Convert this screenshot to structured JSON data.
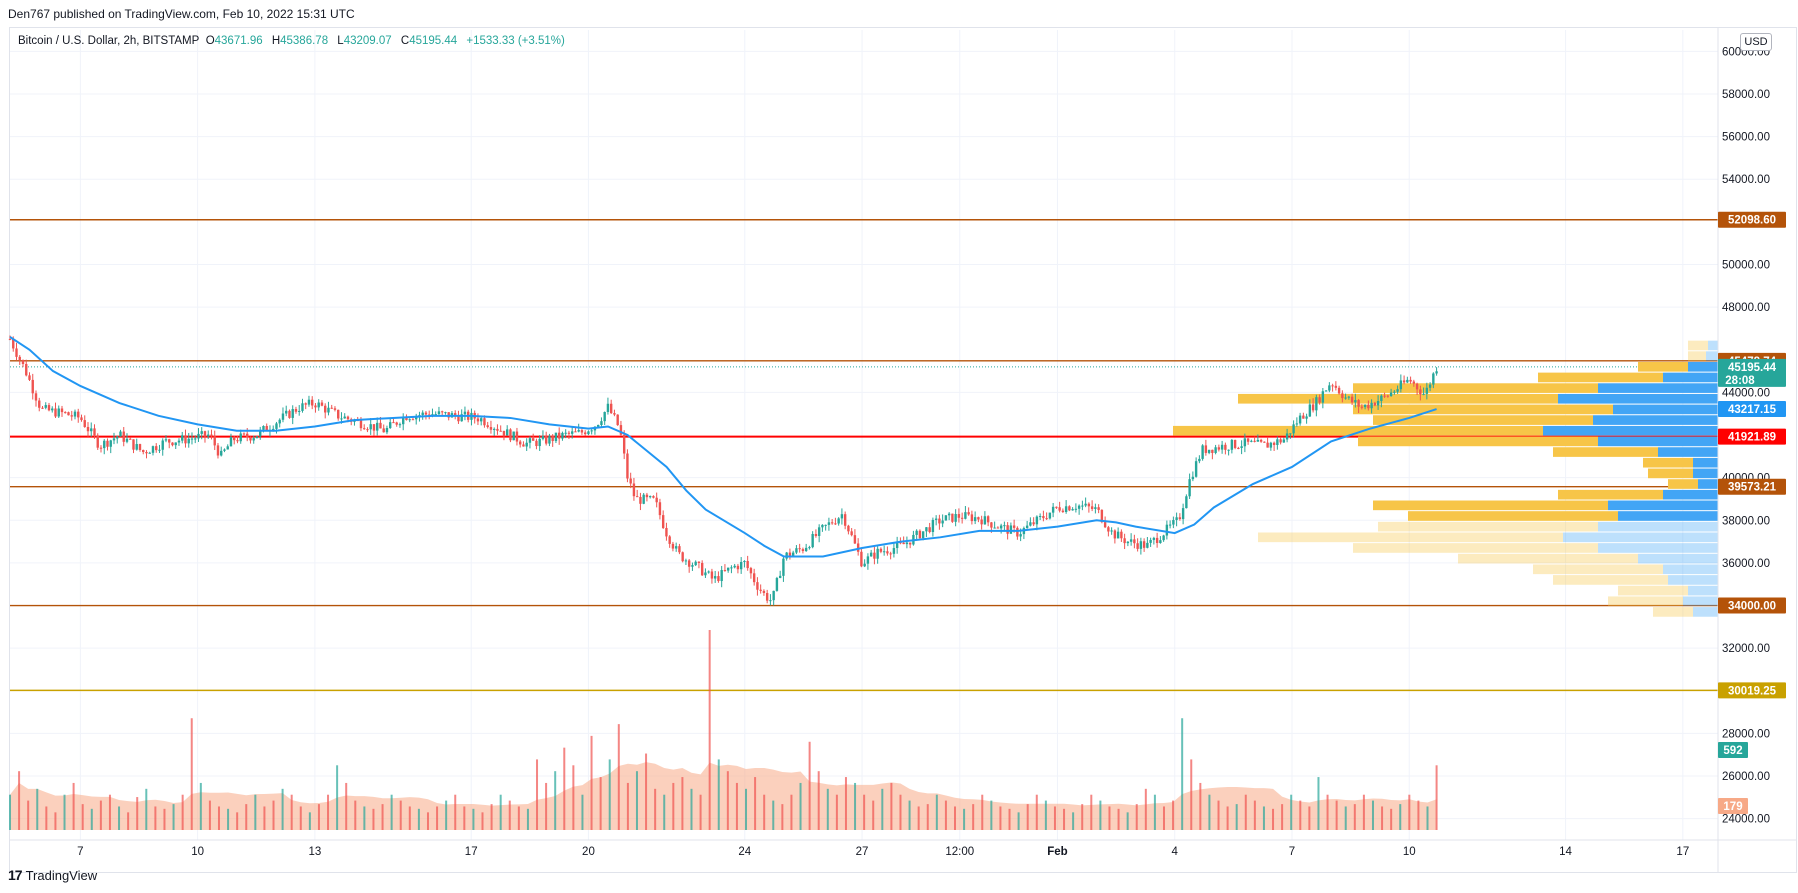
{
  "header": {
    "published_line": "Den767 published on TradingView.com, Feb 10, 2022 15:31 UTC"
  },
  "legend": {
    "symbol": "Bitcoin / U.S. Dollar, 2h, BITSTAMP",
    "o_label": "O",
    "o_value": "43671.96",
    "h_label": "H",
    "h_value": "45386.78",
    "l_label": "L",
    "l_value": "43209.07",
    "c_label": "C",
    "c_value": "45195.44",
    "change": "+1533.33 (+3.51%)"
  },
  "currency": "USD",
  "footer": {
    "logo": "17",
    "brand": "TradingView"
  },
  "colors": {
    "up": "#26a69a",
    "down": "#ef5350",
    "ma": "#2196f3",
    "level_brown": "#b45309",
    "level_red": "#ff0000",
    "level_gold": "#c9a100",
    "vp_yellow": "#f7c548",
    "vp_blue": "#42a5f5",
    "volume_ma": "#f7a987"
  },
  "chart_data": {
    "type": "candlestick",
    "symbol": "BTCUSD",
    "interval": "2h",
    "y_axis": {
      "ticks": [
        "60000.00",
        "58000.00",
        "56000.00",
        "54000.00",
        "50000.00",
        "48000.00",
        "44000.00",
        "40000.00",
        "38000.00",
        "36000.00",
        "32000.00",
        "28000.00",
        "26000.00",
        "24000.00"
      ],
      "range": [
        23000,
        61000
      ]
    },
    "x_axis": {
      "labels": [
        "7",
        "10",
        "13",
        "17",
        "20",
        "24",
        "27",
        "12:00",
        "Feb",
        "4",
        "7",
        "10",
        "14",
        "17"
      ],
      "day_positions": [
        7,
        10,
        13,
        17,
        20,
        24,
        27,
        29.5,
        32,
        35,
        38,
        41,
        45,
        48
      ],
      "range": [
        5.2,
        48.9
      ]
    },
    "horizontal_levels": [
      {
        "value": 52098.6,
        "label": "52098.60",
        "color": "#b45309"
      },
      {
        "value": 45478.74,
        "label": "45478.74",
        "color": "#b45309"
      },
      {
        "value": 41921.89,
        "label": "41921.89",
        "color": "#ff0000"
      },
      {
        "value": 39573.21,
        "label": "39573.21",
        "color": "#b45309"
      },
      {
        "value": 34000.0,
        "label": "34000.00",
        "color": "#b45309"
      },
      {
        "value": 30019.25,
        "label": "30019.25",
        "color": "#c9a100"
      }
    ],
    "price_tags": [
      {
        "value": 45195.44,
        "label": "45195.44",
        "sub": "28:08",
        "color": "#26a69a"
      },
      {
        "value": 43217.15,
        "label": "43217.15",
        "color": "#2196f3"
      }
    ],
    "volume_tags": [
      {
        "label": "592",
        "color": "#26a69a"
      },
      {
        "label": "179",
        "color": "#f7a987"
      }
    ],
    "price_path": [
      [
        5.2,
        46500
      ],
      [
        5.6,
        45000
      ],
      [
        6.0,
        43200
      ],
      [
        6.6,
        43000
      ],
      [
        7.0,
        42800
      ],
      [
        7.5,
        41500
      ],
      [
        8.0,
        42000
      ],
      [
        8.6,
        41200
      ],
      [
        9.2,
        41700
      ],
      [
        9.7,
        41800
      ],
      [
        10.3,
        42000
      ],
      [
        10.6,
        41000
      ],
      [
        10.9,
        41800
      ],
      [
        11.5,
        42000
      ],
      [
        12.0,
        42600
      ],
      [
        12.6,
        43300
      ],
      [
        13.0,
        43500
      ],
      [
        13.6,
        42900
      ],
      [
        14.3,
        42500
      ],
      [
        14.8,
        42200
      ],
      [
        15.3,
        42900
      ],
      [
        16.0,
        43000
      ],
      [
        16.6,
        42900
      ],
      [
        17.2,
        42800
      ],
      [
        17.8,
        42200
      ],
      [
        18.4,
        41600
      ],
      [
        18.8,
        41700
      ],
      [
        19.4,
        42000
      ],
      [
        19.8,
        42100
      ],
      [
        20.2,
        42500
      ],
      [
        20.5,
        43300
      ],
      [
        20.8,
        42300
      ],
      [
        21.0,
        40000
      ],
      [
        21.2,
        39000
      ],
      [
        21.7,
        38900
      ],
      [
        22.0,
        37400
      ],
      [
        22.3,
        36400
      ],
      [
        22.8,
        35800
      ],
      [
        23.2,
        35200
      ],
      [
        23.7,
        35800
      ],
      [
        24.0,
        36000
      ],
      [
        24.3,
        35000
      ],
      [
        24.5,
        34500
      ],
      [
        24.7,
        34200
      ],
      [
        25.0,
        36300
      ],
      [
        25.5,
        36700
      ],
      [
        26.0,
        37600
      ],
      [
        26.5,
        38300
      ],
      [
        27.0,
        36000
      ],
      [
        27.4,
        36500
      ],
      [
        28.0,
        36800
      ],
      [
        28.5,
        37400
      ],
      [
        29.0,
        38000
      ],
      [
        29.5,
        38200
      ],
      [
        30.0,
        38100
      ],
      [
        30.5,
        37700
      ],
      [
        31.0,
        37400
      ],
      [
        31.5,
        38000
      ],
      [
        32.0,
        38600
      ],
      [
        32.5,
        38700
      ],
      [
        33.0,
        38500
      ],
      [
        33.4,
        37400
      ],
      [
        33.8,
        37000
      ],
      [
        34.3,
        36800
      ],
      [
        34.7,
        37400
      ],
      [
        35.1,
        38000
      ],
      [
        35.4,
        40000
      ],
      [
        35.7,
        41300
      ],
      [
        36.3,
        41500
      ],
      [
        36.8,
        41600
      ],
      [
        37.3,
        41500
      ],
      [
        37.8,
        41800
      ],
      [
        38.2,
        42800
      ],
      [
        38.6,
        43500
      ],
      [
        39.0,
        44500
      ],
      [
        39.4,
        43700
      ],
      [
        39.8,
        43300
      ],
      [
        40.4,
        43800
      ],
      [
        41.0,
        44600
      ],
      [
        41.4,
        43900
      ],
      [
        41.7,
        45195
      ]
    ],
    "moving_average": [
      [
        5.2,
        46600
      ],
      [
        5.7,
        46000
      ],
      [
        6.3,
        45000
      ],
      [
        7.0,
        44300
      ],
      [
        8.0,
        43500
      ],
      [
        9.0,
        42900
      ],
      [
        10.0,
        42500
      ],
      [
        11.0,
        42200
      ],
      [
        12.0,
        42200
      ],
      [
        13.0,
        42400
      ],
      [
        14.0,
        42700
      ],
      [
        15.0,
        42800
      ],
      [
        16.0,
        42900
      ],
      [
        17.0,
        42900
      ],
      [
        18.0,
        42800
      ],
      [
        19.0,
        42500
      ],
      [
        20.0,
        42300
      ],
      [
        20.5,
        42400
      ],
      [
        21.0,
        42000
      ],
      [
        22.0,
        40500
      ],
      [
        22.5,
        39400
      ],
      [
        23.0,
        38500
      ],
      [
        24.0,
        37400
      ],
      [
        24.5,
        36800
      ],
      [
        25.0,
        36300
      ],
      [
        26.0,
        36300
      ],
      [
        27.0,
        36700
      ],
      [
        28.0,
        37000
      ],
      [
        29.0,
        37200
      ],
      [
        30.0,
        37500
      ],
      [
        31.0,
        37500
      ],
      [
        32.0,
        37700
      ],
      [
        33.0,
        38000
      ],
      [
        33.5,
        37900
      ],
      [
        34.0,
        37700
      ],
      [
        35.0,
        37400
      ],
      [
        35.5,
        37800
      ],
      [
        36.0,
        38600
      ],
      [
        37.0,
        39700
      ],
      [
        38.0,
        40500
      ],
      [
        39.0,
        41700
      ],
      [
        40.0,
        42300
      ],
      [
        41.0,
        42800
      ],
      [
        41.7,
        43217
      ]
    ],
    "volume": {
      "values": [
        0.3,
        0.5,
        0.25,
        0.35,
        0.2,
        0.15,
        0.3,
        0.4,
        0.22,
        0.18,
        0.25,
        0.3,
        0.2,
        0.15,
        0.28,
        0.35,
        0.2,
        0.18,
        0.22,
        0.3,
        0.95,
        0.4,
        0.25,
        0.2,
        0.18,
        0.15,
        0.22,
        0.3,
        0.2,
        0.25,
        0.35,
        0.3,
        0.2,
        0.15,
        0.22,
        0.3,
        0.55,
        0.4,
        0.25,
        0.2,
        0.18,
        0.22,
        0.3,
        0.25,
        0.2,
        0.18,
        0.15,
        0.2,
        0.25,
        0.3,
        0.2,
        0.18,
        0.15,
        0.22,
        0.3,
        0.25,
        0.2,
        0.18,
        0.6,
        0.4,
        0.5,
        0.7,
        0.55,
        0.3,
        0.8,
        0.45,
        0.6,
        0.9,
        0.4,
        0.5,
        0.65,
        0.35,
        0.3,
        0.4,
        0.45,
        0.35,
        0.3,
        1.7,
        0.6,
        0.5,
        0.4,
        0.35,
        0.45,
        0.3,
        0.25,
        0.22,
        0.3,
        0.4,
        0.75,
        0.5,
        0.35,
        0.3,
        0.45,
        0.4,
        0.3,
        0.25,
        0.35,
        0.4,
        0.3,
        0.25,
        0.2,
        0.22,
        0.3,
        0.25,
        0.2,
        0.18,
        0.22,
        0.3,
        0.25,
        0.2,
        0.18,
        0.15,
        0.22,
        0.3,
        0.25,
        0.2,
        0.18,
        0.15,
        0.22,
        0.3,
        0.25,
        0.2,
        0.18,
        0.15,
        0.22,
        0.35,
        0.3,
        0.2,
        0.25,
        0.95,
        0.6,
        0.4,
        0.3,
        0.25,
        0.2,
        0.22,
        0.3,
        0.25,
        0.2,
        0.18,
        0.22,
        0.3,
        0.25,
        0.2,
        0.45,
        0.3,
        0.25,
        0.2,
        0.22,
        0.3,
        0.25,
        0.2,
        0.18,
        0.22,
        0.3,
        0.25,
        0.2,
        0.55
      ],
      "scale_max": 1.7
    },
    "volume_profile": [
      {
        "price": 46200,
        "yellow": 20,
        "blue": 10,
        "faded": true
      },
      {
        "price": 45700,
        "yellow": 18,
        "blue": 12,
        "faded": true
      },
      {
        "price": 45200,
        "yellow": 50,
        "blue": 30,
        "faded": false
      },
      {
        "price": 44700,
        "yellow": 125,
        "blue": 55,
        "faded": false
      },
      {
        "price": 44200,
        "yellow": 245,
        "blue": 120,
        "faded": false
      },
      {
        "price": 43700,
        "yellow": 320,
        "blue": 160,
        "faded": false
      },
      {
        "price": 43200,
        "yellow": 260,
        "blue": 105,
        "faded": false
      },
      {
        "price": 42700,
        "yellow": 220,
        "blue": 125,
        "faded": false
      },
      {
        "price": 42200,
        "yellow": 370,
        "blue": 175,
        "faded": false
      },
      {
        "price": 41700,
        "yellow": 240,
        "blue": 120,
        "faded": false
      },
      {
        "price": 41200,
        "yellow": 105,
        "blue": 60,
        "faded": false
      },
      {
        "price": 40700,
        "yellow": 50,
        "blue": 25,
        "faded": false
      },
      {
        "price": 40200,
        "yellow": 45,
        "blue": 25,
        "faded": false
      },
      {
        "price": 39700,
        "yellow": 30,
        "blue": 20,
        "faded": false
      },
      {
        "price": 39200,
        "yellow": 105,
        "blue": 55,
        "faded": false
      },
      {
        "price": 38700,
        "yellow": 235,
        "blue": 110,
        "faded": false
      },
      {
        "price": 38200,
        "yellow": 210,
        "blue": 100,
        "faded": false
      },
      {
        "price": 37700,
        "yellow": 220,
        "blue": 120,
        "faded": true
      },
      {
        "price": 37200,
        "yellow": 305,
        "blue": 155,
        "faded": true
      },
      {
        "price": 36700,
        "yellow": 245,
        "blue": 120,
        "faded": true
      },
      {
        "price": 36200,
        "yellow": 180,
        "blue": 80,
        "faded": true
      },
      {
        "price": 35700,
        "yellow": 130,
        "blue": 55,
        "faded": true
      },
      {
        "price": 35200,
        "yellow": 115,
        "blue": 50,
        "faded": true
      },
      {
        "price": 34700,
        "yellow": 70,
        "blue": 30,
        "faded": true
      },
      {
        "price": 34200,
        "yellow": 75,
        "blue": 35,
        "faded": true
      },
      {
        "price": 33700,
        "yellow": 40,
        "blue": 25,
        "faded": true
      }
    ]
  }
}
